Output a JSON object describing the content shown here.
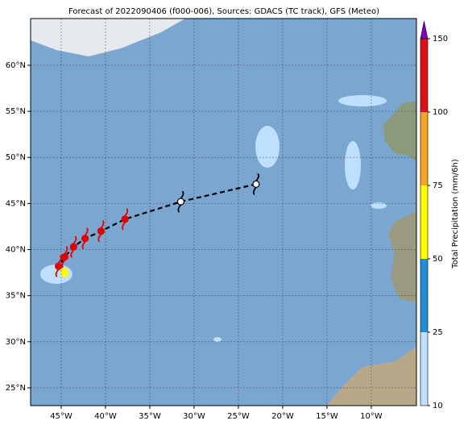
{
  "map": {
    "title": "Forecast of 2022090406 (f000-006), Sources: GDACS (TC track), GFS (Meteo)",
    "lonlim": [
      -48.45,
      -4.9
    ],
    "latlim": [
      23.07,
      65.07
    ],
    "lon_ticks": [
      {
        "value": -45,
        "label": "45°W"
      },
      {
        "value": -40,
        "label": "40°W"
      },
      {
        "value": -35,
        "label": "35°W"
      },
      {
        "value": -30,
        "label": "30°W"
      },
      {
        "value": -25,
        "label": "25°W"
      },
      {
        "value": -20,
        "label": "20°W"
      },
      {
        "value": -15,
        "label": "15°W"
      },
      {
        "value": -10,
        "label": "10°W"
      }
    ],
    "lat_ticks": [
      {
        "value": 25,
        "label": "25°N"
      },
      {
        "value": 30,
        "label": "30°N"
      },
      {
        "value": 35,
        "label": "35°N"
      },
      {
        "value": 40,
        "label": "40°N"
      },
      {
        "value": 45,
        "label": "45°N"
      },
      {
        "value": 50,
        "label": "50°N"
      },
      {
        "value": 55,
        "label": "55°N"
      },
      {
        "value": 60,
        "label": "60°N"
      }
    ],
    "track": {
      "lon": [
        -23.0,
        -31.5,
        -37.8,
        -40.5,
        -42.3,
        -43.6,
        -44.6,
        -45.3
      ],
      "lat": [
        47.1,
        45.2,
        43.3,
        42.0,
        41.2,
        40.3,
        39.2,
        38.2
      ],
      "colors": [
        "#ffffff",
        "#ffffff",
        "#e00000",
        "#e00000",
        "#e00000",
        "#e00000",
        "#e00000",
        "#e00000"
      ]
    },
    "colorbar": {
      "label": "Total Precipitation (mm/6h)",
      "ticks": [
        10,
        25,
        50,
        75,
        100,
        150
      ],
      "colors": [
        "#bfdfff",
        "#1e8fd6",
        "#ffff00",
        "#f5a623",
        "#e0101a"
      ],
      "extend_color": "#8000c0"
    }
  }
}
